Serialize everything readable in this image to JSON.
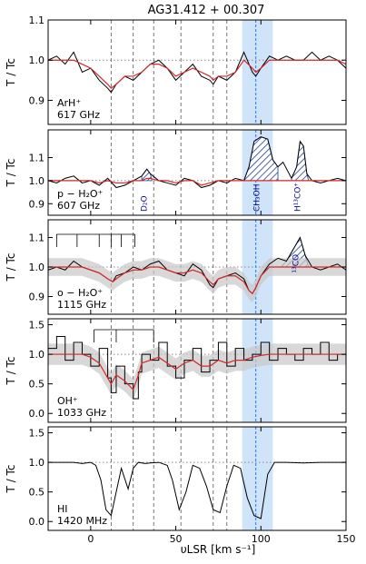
{
  "title": "AG31.412 + 00.307",
  "colors": {
    "model": "#d62728",
    "spectrum": "#000000",
    "vlsr_line": "#1f77ff",
    "vlsr_band": "#cfe4f8",
    "hatch": "#1f3f8f",
    "annotation": "#00008b",
    "envelope": "#c8c8c8"
  },
  "chart_data": {
    "type": "line",
    "title": "AG31.412 + 00.307",
    "xlabel": "υLSR [km s⁻¹]",
    "xlim": [
      -25,
      150
    ],
    "xticks": [
      0,
      50,
      100,
      150
    ],
    "vlsr_systemic": 97,
    "vlsr_band": [
      89,
      107
    ],
    "velocity_components": [
      12,
      25,
      37,
      53,
      72,
      80
    ],
    "dotted_reference": 1.0,
    "panels": [
      {
        "id": "arh",
        "label_line1": "ArH⁺",
        "label_line2": "617 GHz",
        "ylabel": "T / Tc",
        "ylim": [
          0.84,
          1.1
        ],
        "yticks": [
          "0.9",
          "1.0",
          "1.1"
        ],
        "ytick_values": [
          0.9,
          1.0,
          1.1
        ],
        "series": [
          {
            "role": "spectrum",
            "x": [
              -25,
              -20,
              -15,
              -10,
              -5,
              0,
              5,
              10,
              12,
              15,
              20,
              25,
              30,
              35,
              40,
              45,
              50,
              55,
              60,
              65,
              70,
              72,
              75,
              80,
              85,
              90,
              95,
              97,
              100,
              105,
              110,
              115,
              120,
              125,
              130,
              135,
              140,
              145,
              150
            ],
            "y": [
              1.0,
              1.01,
              0.99,
              1.02,
              0.97,
              0.98,
              0.95,
              0.93,
              0.92,
              0.94,
              0.96,
              0.95,
              0.97,
              0.99,
              1.0,
              0.98,
              0.95,
              0.97,
              0.99,
              0.96,
              0.95,
              0.94,
              0.96,
              0.95,
              0.97,
              1.02,
              0.97,
              0.96,
              0.98,
              1.01,
              1.0,
              1.01,
              1.0,
              1.0,
              1.02,
              1.0,
              1.01,
              1.0,
              0.98
            ]
          },
          {
            "role": "model",
            "x": [
              -25,
              -20,
              -15,
              -10,
              -5,
              0,
              5,
              10,
              12,
              15,
              20,
              25,
              30,
              35,
              40,
              45,
              50,
              55,
              60,
              65,
              70,
              72,
              75,
              80,
              85,
              90,
              95,
              97,
              100,
              105,
              110,
              115,
              120,
              125,
              130,
              135,
              140,
              145,
              150
            ],
            "y": [
              1.0,
              1.0,
              1.0,
              1.0,
              0.99,
              0.98,
              0.96,
              0.94,
              0.93,
              0.94,
              0.96,
              0.96,
              0.97,
              0.99,
              0.99,
              0.98,
              0.96,
              0.97,
              0.98,
              0.97,
              0.96,
              0.95,
              0.96,
              0.96,
              0.97,
              1.0,
              0.98,
              0.97,
              0.98,
              1.0,
              1.0,
              1.0,
              1.0,
              1.0,
              1.0,
              1.0,
              1.0,
              1.0,
              0.99
            ]
          }
        ]
      },
      {
        "id": "ph2o",
        "label_line1": "p − H₂O⁺",
        "label_line2": "607 GHz",
        "ylabel": "T / Tc",
        "ylim": [
          0.85,
          1.22
        ],
        "yticks": [
          "0.9",
          "1.0",
          "1.1"
        ],
        "ytick_values": [
          0.9,
          1.0,
          1.1
        ],
        "annotations": [
          {
            "text": "D₂O",
            "x": 33
          },
          {
            "text": "CH₃OH",
            "x": 99
          },
          {
            "text": "H¹³CO⁺",
            "x": 123
          }
        ],
        "series": [
          {
            "role": "spectrum",
            "x": [
              -25,
              -20,
              -15,
              -10,
              -5,
              0,
              5,
              10,
              15,
              20,
              25,
              30,
              33,
              35,
              40,
              45,
              50,
              55,
              60,
              65,
              70,
              75,
              80,
              85,
              90,
              93,
              96,
              100,
              104,
              107,
              110,
              113,
              118,
              121,
              123,
              125,
              127,
              130,
              135,
              140,
              145,
              150
            ],
            "y": [
              1.0,
              0.99,
              1.01,
              1.02,
              0.99,
              1.0,
              0.98,
              1.01,
              0.97,
              0.98,
              1.0,
              1.02,
              1.05,
              1.03,
              1.0,
              0.99,
              0.98,
              1.01,
              1.0,
              0.97,
              0.98,
              1.0,
              0.99,
              1.01,
              1.0,
              1.06,
              1.17,
              1.19,
              1.18,
              1.09,
              1.06,
              1.08,
              1.01,
              1.06,
              1.17,
              1.15,
              1.03,
              1.0,
              0.99,
              1.0,
              1.01,
              1.0
            ]
          },
          {
            "role": "model",
            "x": [
              -25,
              -20,
              -15,
              -10,
              -5,
              0,
              5,
              10,
              15,
              20,
              25,
              30,
              33,
              35,
              40,
              45,
              50,
              55,
              60,
              65,
              70,
              75,
              80,
              85,
              90,
              93,
              96,
              100,
              104,
              107,
              110,
              113,
              118,
              121,
              123,
              125,
              127,
              130,
              135,
              140,
              145,
              150
            ],
            "y": [
              1.0,
              1.0,
              1.0,
              1.0,
              1.0,
              1.0,
              0.99,
              1.0,
              0.99,
              0.99,
              1.0,
              1.0,
              1.01,
              1.01,
              1.0,
              1.0,
              0.99,
              1.0,
              1.0,
              0.98,
              0.99,
              1.0,
              1.0,
              1.0,
              1.0,
              1.0,
              1.0,
              1.0,
              1.0,
              1.0,
              1.0,
              1.0,
              1.0,
              1.0,
              1.0,
              1.0,
              1.0,
              1.0,
              1.0,
              1.0,
              1.0,
              1.0
            ]
          }
        ]
      },
      {
        "id": "oh2o",
        "label_line1": "o − H₂O⁺",
        "label_line2": "1115 GHz",
        "ylabel": "T / Tc",
        "ylim": [
          0.84,
          1.16
        ],
        "yticks": [
          "0.9",
          "1.0",
          "1.1"
        ],
        "ytick_values": [
          0.9,
          1.0,
          1.1
        ],
        "annotations": [
          {
            "text": "¹³CO",
            "x": 122
          }
        ],
        "series": [
          {
            "role": "spectrum",
            "x": [
              -25,
              -20,
              -15,
              -10,
              -5,
              0,
              5,
              10,
              13,
              15,
              20,
              25,
              30,
              35,
              40,
              45,
              50,
              55,
              60,
              65,
              70,
              72,
              75,
              80,
              85,
              90,
              93,
              95,
              97,
              100,
              105,
              110,
              115,
              120,
              123,
              126,
              130,
              135,
              140,
              145,
              150
            ],
            "y": [
              0.99,
              1.0,
              0.99,
              1.02,
              1.0,
              0.99,
              0.98,
              0.96,
              0.95,
              0.97,
              0.98,
              1.0,
              0.99,
              1.01,
              1.02,
              0.99,
              0.98,
              0.97,
              1.01,
              0.99,
              0.94,
              0.93,
              0.96,
              0.97,
              0.98,
              0.96,
              0.92,
              0.91,
              0.93,
              0.97,
              1.01,
              1.03,
              1.02,
              1.07,
              1.1,
              1.04,
              1.0,
              0.99,
              1.0,
              1.01,
              0.99
            ]
          },
          {
            "role": "model",
            "x": [
              -25,
              -20,
              -15,
              -10,
              -5,
              0,
              5,
              10,
              13,
              15,
              20,
              25,
              30,
              35,
              40,
              45,
              50,
              55,
              60,
              65,
              70,
              72,
              75,
              80,
              85,
              90,
              93,
              95,
              97,
              100,
              105,
              110,
              115,
              120,
              123,
              126,
              130,
              135,
              140,
              145,
              150
            ],
            "y": [
              1.0,
              1.0,
              1.0,
              1.0,
              1.0,
              0.99,
              0.98,
              0.96,
              0.95,
              0.96,
              0.98,
              0.99,
              0.99,
              1.0,
              1.0,
              0.99,
              0.98,
              0.98,
              0.99,
              0.98,
              0.95,
              0.94,
              0.96,
              0.97,
              0.97,
              0.95,
              0.92,
              0.91,
              0.93,
              0.97,
              1.0,
              1.0,
              1.0,
              1.0,
              1.0,
              1.0,
              1.0,
              1.0,
              1.0,
              1.0,
              1.0
            ]
          }
        ]
      },
      {
        "id": "ohp",
        "label_line1": "OH⁺",
        "label_line2": "1033 GHz",
        "ylabel": "T / Tc",
        "ylim": [
          -0.15,
          1.6
        ],
        "yticks": [
          "0.0",
          "0.5",
          "1.0",
          "1.5"
        ],
        "ytick_values": [
          0.0,
          0.5,
          1.0,
          1.5
        ],
        "series": [
          {
            "role": "spectrum",
            "x": [
              -25,
              -20,
              -15,
              -10,
              -5,
              0,
              5,
              10,
              12,
              15,
              20,
              25,
              28,
              30,
              35,
              40,
              45,
              50,
              55,
              60,
              65,
              70,
              75,
              80,
              85,
              90,
              95,
              100,
              105,
              110,
              115,
              120,
              125,
              130,
              135,
              140,
              145,
              150
            ],
            "y": [
              1.1,
              1.3,
              0.9,
              1.2,
              1.0,
              0.8,
              1.1,
              0.6,
              0.35,
              0.8,
              0.5,
              0.25,
              0.7,
              1.0,
              0.9,
              1.2,
              0.8,
              0.6,
              0.9,
              1.1,
              0.7,
              0.9,
              1.2,
              0.8,
              1.1,
              0.9,
              1.0,
              1.2,
              0.9,
              1.1,
              1.0,
              0.9,
              1.1,
              1.0,
              1.2,
              0.9,
              1.0,
              1.1
            ]
          },
          {
            "role": "model",
            "x": [
              -25,
              -20,
              -15,
              -10,
              -5,
              0,
              5,
              10,
              12,
              15,
              20,
              25,
              28,
              30,
              35,
              40,
              45,
              50,
              55,
              60,
              65,
              70,
              75,
              80,
              85,
              90,
              95,
              100,
              105,
              110,
              115,
              120,
              125,
              130,
              135,
              140,
              145,
              150
            ],
            "y": [
              1.0,
              1.0,
              1.0,
              1.0,
              1.0,
              0.95,
              0.85,
              0.6,
              0.5,
              0.65,
              0.55,
              0.4,
              0.65,
              0.85,
              0.9,
              0.95,
              0.85,
              0.75,
              0.85,
              0.9,
              0.8,
              0.8,
              0.9,
              0.85,
              0.9,
              0.9,
              0.95,
              0.98,
              1.0,
              1.0,
              1.0,
              1.0,
              1.0,
              1.0,
              1.0,
              1.0,
              1.0,
              1.0
            ]
          }
        ]
      },
      {
        "id": "hi",
        "label_line1": "HI",
        "label_line2": "1420 MHz",
        "ylabel": "T / Tc",
        "ylim": [
          -0.15,
          1.6
        ],
        "yticks": [
          "0.0",
          "0.5",
          "1.0",
          "1.5"
        ],
        "ytick_values": [
          0.0,
          0.5,
          1.0,
          1.5
        ],
        "series": [
          {
            "role": "spectrum",
            "x": [
              -25,
              -20,
              -15,
              -10,
              -5,
              0,
              3,
              6,
              9,
              12,
              15,
              18,
              22,
              25,
              28,
              32,
              35,
              40,
              45,
              48,
              52,
              56,
              60,
              64,
              68,
              72,
              76,
              80,
              84,
              88,
              92,
              96,
              100,
              104,
              108,
              115,
              125,
              135,
              140,
              150
            ],
            "y": [
              1.0,
              1.0,
              1.0,
              1.0,
              0.98,
              1.0,
              0.95,
              0.7,
              0.2,
              0.1,
              0.5,
              0.9,
              0.55,
              0.9,
              1.0,
              0.98,
              0.99,
              1.0,
              0.95,
              0.7,
              0.2,
              0.5,
              0.95,
              0.9,
              0.6,
              0.2,
              0.15,
              0.6,
              0.95,
              0.9,
              0.4,
              0.1,
              0.05,
              0.8,
              1.0,
              1.0,
              0.99,
              1.0,
              1.0,
              1.0
            ]
          }
        ]
      }
    ]
  }
}
